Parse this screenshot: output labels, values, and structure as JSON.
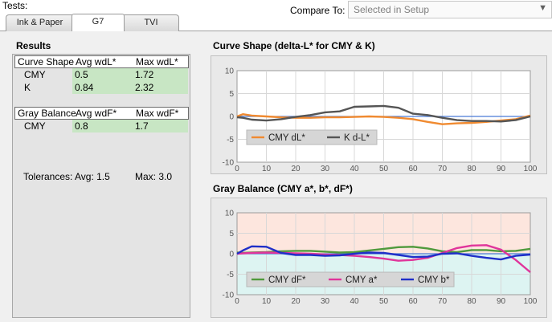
{
  "header": {
    "tests_label": "Tests:",
    "compare_label": "Compare To:",
    "compare_value": "Selected in Setup"
  },
  "tabs": [
    {
      "label": "Ink & Paper",
      "active": false
    },
    {
      "label": "G7",
      "active": true
    },
    {
      "label": "TVI",
      "active": false
    }
  ],
  "results": {
    "title": "Results",
    "curve_shape": {
      "headers": [
        "Curve Shape",
        "Avg wdL*",
        "Max wdL*"
      ],
      "rows": [
        {
          "label": "CMY",
          "avg": "0.5",
          "max": "1.72"
        },
        {
          "label": "K",
          "avg": "0.84",
          "max": "2.32"
        }
      ]
    },
    "gray_balance": {
      "headers": [
        "Gray Balance",
        "Avg wdF*",
        "Max wdF*"
      ],
      "rows": [
        {
          "label": "CMY",
          "avg": "0.8",
          "max": "1.7"
        }
      ]
    },
    "tolerances": {
      "label": "Tolerances:",
      "avg": "Avg: 1.5",
      "max": "Max: 3.0"
    }
  },
  "colors": {
    "cmy_dl": "#f08a30",
    "k_dl": "#555555",
    "cmy_df": "#4f9a3c",
    "cmy_a": "#e0359b",
    "cmy_b": "#1f2fc8",
    "highlight": "#c8e6c4"
  },
  "chart_data": [
    {
      "type": "line",
      "title": "Curve Shape (delta-L* for CMY & K)",
      "xlim": [
        0,
        100
      ],
      "ylim": [
        -10,
        10
      ],
      "x_ticks": [
        0,
        10,
        20,
        30,
        40,
        50,
        60,
        70,
        80,
        90,
        100
      ],
      "y_ticks": [
        -10,
        -5,
        0,
        5,
        10
      ],
      "legend_position": "lower-left",
      "series": [
        {
          "name": "CMY dL*",
          "color": "#f08a30",
          "x": [
            0,
            2,
            5,
            10,
            15,
            20,
            25,
            30,
            35,
            40,
            45,
            50,
            55,
            60,
            65,
            70,
            75,
            80,
            85,
            90,
            95,
            100
          ],
          "values": [
            0,
            0.5,
            0.2,
            0,
            -0.2,
            -0.3,
            -0.3,
            -0.2,
            -0.2,
            -0.1,
            0,
            -0.1,
            -0.3,
            -0.6,
            -1.2,
            -1.7,
            -1.5,
            -1.4,
            -1.2,
            -0.9,
            -0.6,
            0.2
          ]
        },
        {
          "name": "K d-L*",
          "color": "#555555",
          "x": [
            0,
            2,
            5,
            10,
            15,
            20,
            25,
            30,
            35,
            40,
            45,
            50,
            55,
            60,
            65,
            70,
            75,
            80,
            85,
            90,
            95,
            100
          ],
          "values": [
            -0.2,
            -0.3,
            -0.7,
            -0.9,
            -0.6,
            -0.1,
            0.3,
            0.9,
            1.1,
            2.1,
            2.2,
            2.3,
            1.9,
            0.6,
            0.3,
            -0.3,
            -0.8,
            -1.0,
            -1.0,
            -1.1,
            -0.8,
            0
          ]
        }
      ]
    },
    {
      "type": "line",
      "title": "Gray Balance (CMY a*, b*, dF*)",
      "xlim": [
        0,
        100
      ],
      "ylim": [
        -10,
        10
      ],
      "x_ticks": [
        0,
        10,
        20,
        30,
        40,
        50,
        60,
        70,
        80,
        90,
        100
      ],
      "y_ticks": [
        -10,
        -5,
        0,
        5,
        10
      ],
      "legend_position": "lower-left",
      "series": [
        {
          "name": "CMY dF*",
          "color": "#4f9a3c",
          "x": [
            0,
            2,
            5,
            10,
            15,
            20,
            25,
            30,
            35,
            40,
            45,
            50,
            55,
            60,
            65,
            70,
            75,
            80,
            85,
            90,
            95,
            100
          ],
          "values": [
            0.3,
            0.2,
            0.3,
            0.4,
            0.6,
            0.7,
            0.7,
            0.5,
            0.3,
            0.4,
            0.8,
            1.2,
            1.6,
            1.7,
            1.3,
            0.6,
            0.4,
            0.9,
            0.9,
            0.6,
            0.7,
            1.2
          ]
        },
        {
          "name": "CMY a*",
          "color": "#e0359b",
          "x": [
            0,
            2,
            5,
            10,
            15,
            20,
            25,
            30,
            35,
            40,
            45,
            50,
            55,
            60,
            65,
            70,
            75,
            80,
            85,
            90,
            95,
            100
          ],
          "values": [
            0,
            0.1,
            0.2,
            0.3,
            0.2,
            0.1,
            0,
            -0.2,
            -0.3,
            -0.5,
            -0.8,
            -1.2,
            -1.7,
            -1.5,
            -1.0,
            0.2,
            1.4,
            2.0,
            2.1,
            1.0,
            -1.5,
            -4.5
          ]
        },
        {
          "name": "CMY b*",
          "color": "#1f2fc8",
          "x": [
            0,
            2,
            5,
            10,
            15,
            20,
            25,
            30,
            35,
            40,
            45,
            50,
            55,
            60,
            65,
            70,
            75,
            80,
            85,
            90,
            95,
            100
          ],
          "values": [
            0,
            0.8,
            1.8,
            1.7,
            0.2,
            -0.3,
            -0.3,
            -0.5,
            -0.4,
            0,
            0.3,
            0.2,
            -0.3,
            -0.8,
            -0.7,
            0,
            0.1,
            -0.5,
            -1.0,
            -1.4,
            -0.5,
            -0.2
          ]
        }
      ]
    }
  ]
}
